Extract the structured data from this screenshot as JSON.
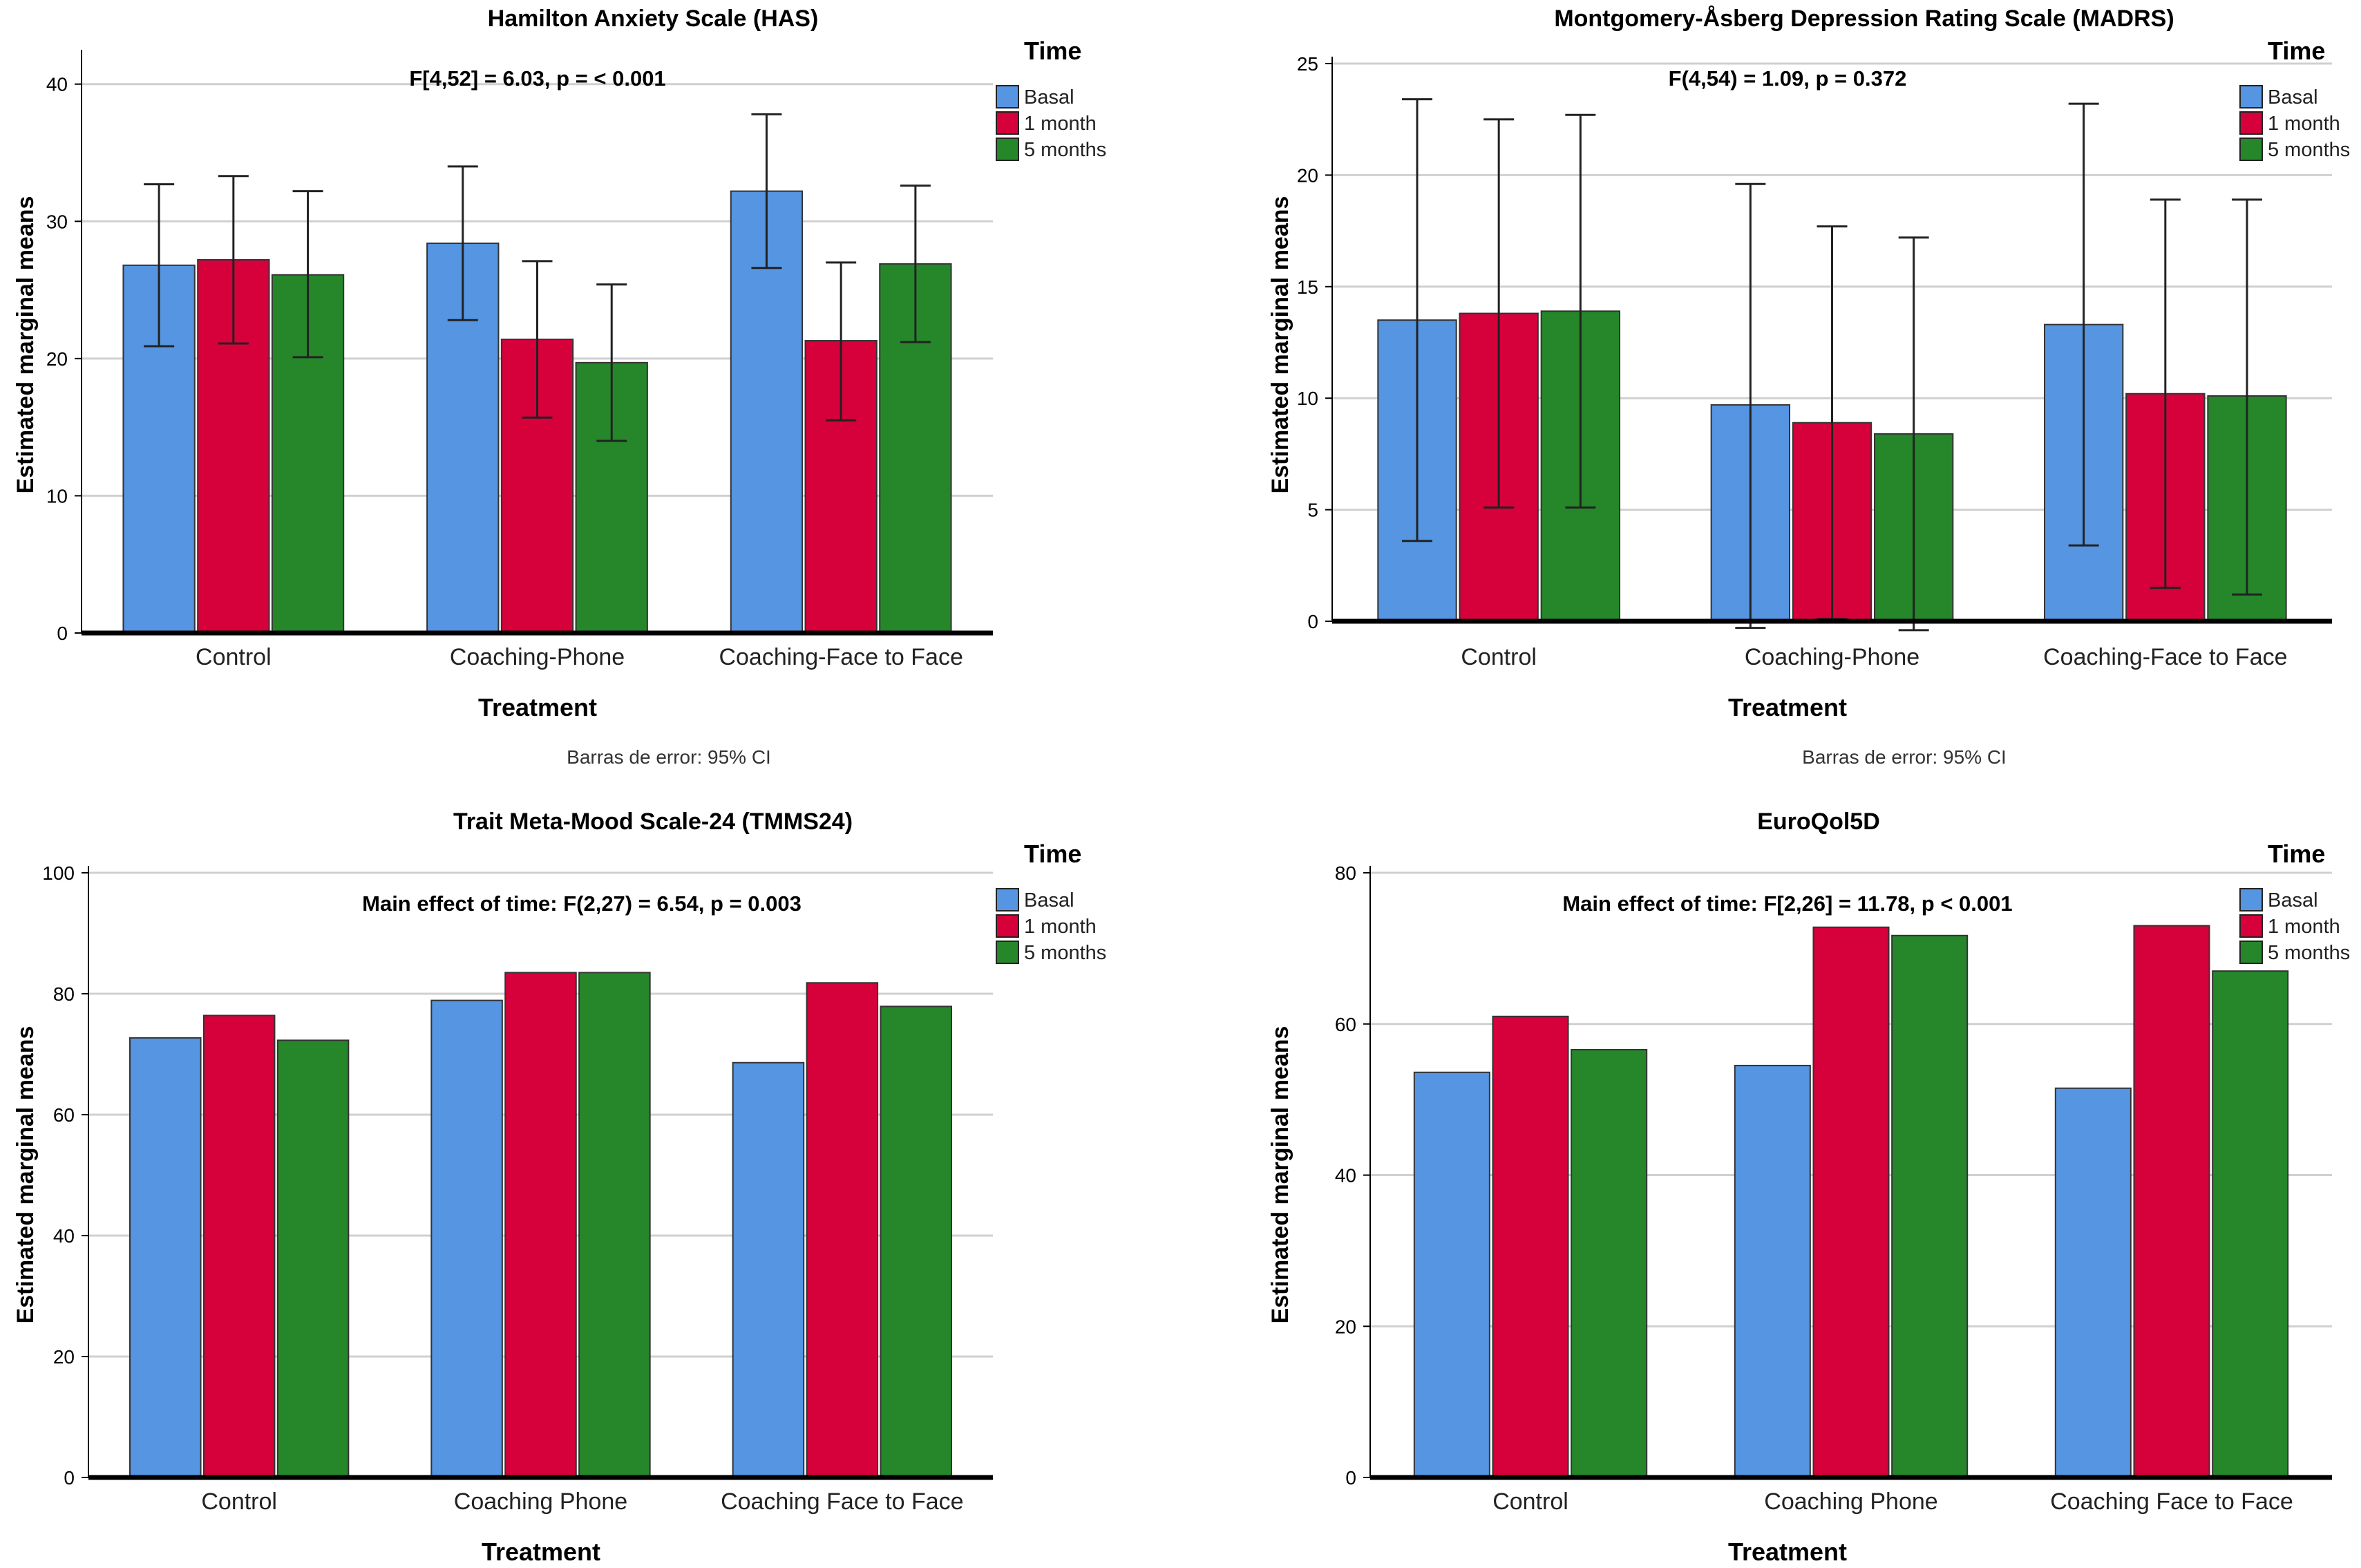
{
  "colors": {
    "basal": "#5595E2",
    "one_month": "#D6003A",
    "five_months": "#25872A",
    "grid": "#d0d0d0",
    "axis": "#000000"
  },
  "chart_data": [
    {
      "type": "bar",
      "title": "Hamilton Anxiety Scale (HAS)",
      "annotation": "F[4,52] = 6.03, p = < 0.001",
      "xlabel": "Treatment",
      "ylabel": "Estimated marginal means",
      "categories": [
        "Control",
        "Coaching-Phone",
        "Coaching-Face to Face"
      ],
      "ylim": [
        0,
        42
      ],
      "yticks": [
        0,
        10,
        20,
        30,
        40
      ],
      "grid": true,
      "legend": {
        "title": "Time",
        "placement": "top-right"
      },
      "footnote": "Barras de error: 95% CI",
      "series": [
        {
          "name": "Basal",
          "values": [
            26.8,
            28.4,
            32.2
          ],
          "err_low": [
            20.9,
            22.8,
            26.6
          ],
          "err_high": [
            32.7,
            34.0,
            37.8
          ]
        },
        {
          "name": "1 month",
          "values": [
            27.2,
            21.4,
            21.3
          ],
          "err_low": [
            21.1,
            15.7,
            15.5
          ],
          "err_high": [
            33.3,
            27.1,
            27.0
          ]
        },
        {
          "name": "5 months",
          "values": [
            26.1,
            19.7,
            26.9
          ],
          "err_low": [
            20.1,
            14.0,
            21.2
          ],
          "err_high": [
            32.2,
            25.4,
            32.6
          ]
        }
      ]
    },
    {
      "type": "bar",
      "title": "Montgomery-Åsberg Depression Rating Scale (MADRS)",
      "annotation": "F(4,54) = 1.09, p = 0.372",
      "xlabel": "Treatment",
      "ylabel": "Estimated marginal means",
      "categories": [
        "Control",
        "Coaching-Phone",
        "Coaching-Face to Face"
      ],
      "ylim": [
        0,
        25
      ],
      "yticks": [
        0,
        5,
        10,
        15,
        20,
        25
      ],
      "grid": true,
      "legend": {
        "title": "Time",
        "placement": "top-right"
      },
      "footnote": "Barras de error: 95% CI",
      "series": [
        {
          "name": "Basal",
          "values": [
            13.5,
            9.7,
            13.3
          ],
          "err_low": [
            3.6,
            -0.3,
            3.4
          ],
          "err_high": [
            23.4,
            19.6,
            23.2
          ]
        },
        {
          "name": "1 month",
          "values": [
            13.8,
            8.9,
            10.2
          ],
          "err_low": [
            5.1,
            0.1,
            1.5
          ],
          "err_high": [
            22.5,
            17.7,
            18.9
          ]
        },
        {
          "name": "5 months",
          "values": [
            13.9,
            8.4,
            10.1
          ],
          "err_low": [
            5.1,
            -0.4,
            1.2
          ],
          "err_high": [
            22.7,
            17.2,
            18.9
          ]
        }
      ]
    },
    {
      "type": "bar",
      "title": "Trait Meta-Mood Scale-24 (TMMS24)",
      "annotation": "Main effect of time: F(2,27) = 6.54, p = 0.003",
      "xlabel": "Treatment",
      "ylabel": "Estimated marginal means",
      "categories": [
        "Control",
        "Coaching Phone",
        "Coaching Face to Face"
      ],
      "ylim": [
        0,
        100
      ],
      "yticks": [
        0,
        20,
        40,
        60,
        80,
        100
      ],
      "grid": true,
      "legend": {
        "title": "Time",
        "placement": "top-right"
      },
      "series": [
        {
          "name": "Basal",
          "values": [
            72.7,
            78.9,
            68.6
          ]
        },
        {
          "name": "1 month",
          "values": [
            76.4,
            83.5,
            81.8
          ]
        },
        {
          "name": "5 months",
          "values": [
            72.3,
            83.5,
            77.9
          ]
        }
      ]
    },
    {
      "type": "bar",
      "title": "EuroQol5D",
      "annotation": "Main effect of time: F[2,26] = 11.78, p < 0.001",
      "xlabel": "Treatment",
      "ylabel": "Estimated marginal means",
      "categories": [
        "Control",
        "Coaching Phone",
        "Coaching Face to Face"
      ],
      "ylim": [
        0,
        80
      ],
      "yticks": [
        0,
        20,
        40,
        60,
        80
      ],
      "grid": true,
      "legend": {
        "title": "Time",
        "placement": "top-right"
      },
      "series": [
        {
          "name": "Basal",
          "values": [
            53.6,
            54.5,
            51.5
          ]
        },
        {
          "name": "1 month",
          "values": [
            61.0,
            72.8,
            73.0
          ]
        },
        {
          "name": "5 months",
          "values": [
            56.6,
            71.7,
            67.0
          ]
        }
      ]
    }
  ]
}
